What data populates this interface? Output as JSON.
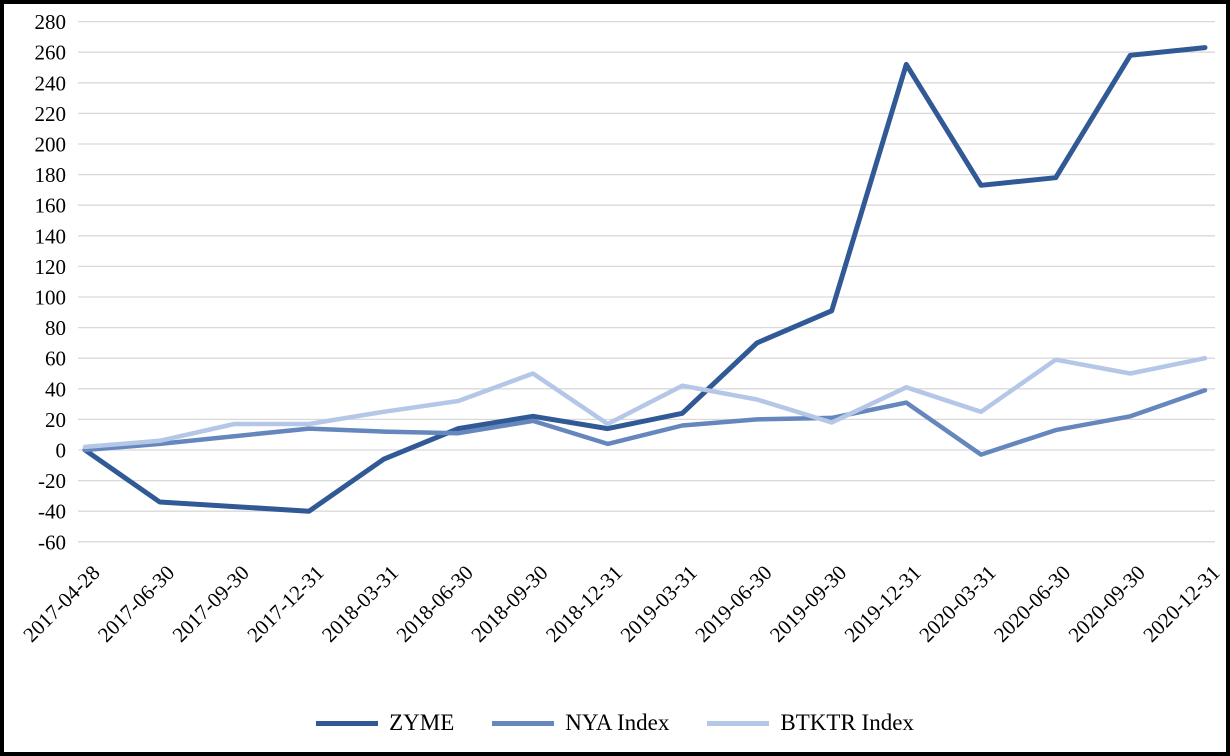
{
  "page": {
    "background": "#FFFFFF",
    "border_color": "#000000",
    "text_color": "#000000"
  },
  "chart_data": {
    "type": "line",
    "title": "",
    "xlabel": "",
    "ylabel": "",
    "categories": [
      "2017-04-28",
      "2017-06-30",
      "2017-09-30",
      "2017-12-31",
      "2018-03-31",
      "2018-06-30",
      "2018-09-30",
      "2018-12-31",
      "2019-03-31",
      "2019-06-30",
      "2019-09-30",
      "2019-12-31",
      "2020-03-31",
      "2020-06-30",
      "2020-09-30",
      "2020-12-31"
    ],
    "series": [
      {
        "name": "ZYME",
        "color": "#305995",
        "stroke_width": 5,
        "values": [
          0,
          -34,
          -37,
          -40,
          -6,
          14,
          22,
          14,
          24,
          70,
          91,
          252,
          173,
          178,
          258,
          263
        ]
      },
      {
        "name": "NYA Index",
        "color": "#6587BD",
        "stroke_width": 4.5,
        "values": [
          0,
          4,
          9,
          14,
          12,
          11,
          19,
          4,
          16,
          20,
          21,
          31,
          -3,
          13,
          22,
          39
        ]
      },
      {
        "name": "BTKTR Index",
        "color": "#B4C7E7",
        "stroke_width": 4.5,
        "values": [
          2,
          6,
          17,
          17,
          25,
          32,
          50,
          17,
          42,
          33,
          18,
          41,
          25,
          59,
          50,
          60
        ]
      }
    ],
    "ylim": [
      -60,
      280
    ],
    "yticks": [
      280,
      260,
      240,
      220,
      200,
      180,
      160,
      140,
      120,
      100,
      80,
      60,
      40,
      20,
      0,
      -20,
      -40,
      -60
    ],
    "grid": "horizontal",
    "grid_color": "#D9D9D9",
    "legend_position": "bottom"
  }
}
